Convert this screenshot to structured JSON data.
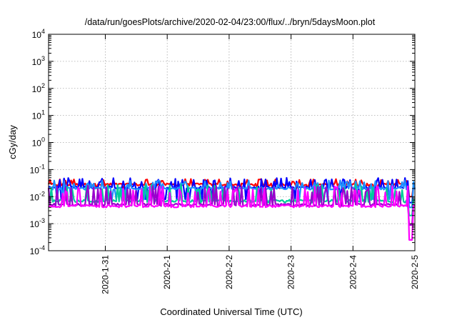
{
  "chart_data": {
    "type": "line",
    "title": "/data/run/goesPlots/archive/2020-02-04/23:00/flux/../bryn/5daysMoon.plot",
    "xlabel": "Coordinated Universal Time (UTC)",
    "ylabel": "cGy/day",
    "yscale": "log",
    "ylim": [
      0.0001,
      10000
    ],
    "xlim": [
      "2020-01-30 02:00",
      "2020-02-05 00:00"
    ],
    "grid": true,
    "x_ticks": [
      "2020-1-31",
      "2020-2-1",
      "2020-2-2",
      "2020-2-3",
      "2020-2-4",
      "2020-2-5"
    ],
    "y_ticks": [
      {
        "base": "10",
        "exp": "-4"
      },
      {
        "base": "10",
        "exp": "-3"
      },
      {
        "base": "10",
        "exp": "-2"
      },
      {
        "base": "10",
        "exp": "-1"
      },
      {
        "base": "10",
        "exp": "0"
      },
      {
        "base": "10",
        "exp": "1"
      },
      {
        "base": "10",
        "exp": "2"
      },
      {
        "base": "10",
        "exp": "3"
      },
      {
        "base": "10",
        "exp": "4"
      }
    ],
    "series": [
      {
        "color": "#ff0000",
        "baseline": 0.028,
        "spike_max": 0.045,
        "dip_min": 0.02,
        "final_dip": 0.01
      },
      {
        "color": "#0000ff",
        "baseline": 0.022,
        "spike_max": 0.05,
        "dip_min": 0.008,
        "final_dip": 0.006
      },
      {
        "color": "#1e90ff",
        "baseline": 0.02,
        "spike_max": 0.04,
        "dip_min": 0.008,
        "final_dip": 0.004
      },
      {
        "color": "#00cc99",
        "baseline": 0.007,
        "spike_max": 0.03,
        "dip_min": 0.006,
        "final_dip": 0.002
      },
      {
        "color": "#9900cc",
        "baseline": 0.005,
        "spike_max": 0.025,
        "dip_min": 0.0045,
        "final_dip": 0.0009
      },
      {
        "color": "#ff00ff",
        "baseline": 0.0045,
        "spike_max": 0.025,
        "dip_min": 0.004,
        "final_dip": 0.00025
      }
    ]
  }
}
